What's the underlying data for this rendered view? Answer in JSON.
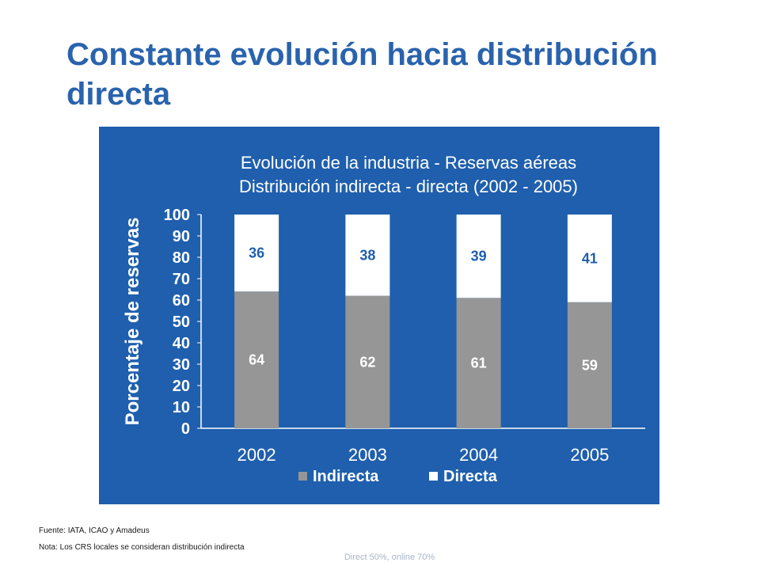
{
  "slide": {
    "title": "Constante evolución hacia distribución directa"
  },
  "chart_data": {
    "type": "bar",
    "stacked": true,
    "title": [
      "Evolución de la industria - Reservas aéreas",
      "Distribución indirecta - directa (2002 - 2005)"
    ],
    "xlabel": "",
    "ylabel": "Porcentaje de reservas",
    "categories": [
      "2002",
      "2003",
      "2004",
      "2005"
    ],
    "ylim": [
      0,
      100
    ],
    "yticks": [
      0,
      10,
      20,
      30,
      40,
      50,
      60,
      70,
      80,
      90,
      100
    ],
    "series": [
      {
        "name": "Indirecta",
        "values": [
          64,
          62,
          61,
          59
        ],
        "color": "#969696",
        "label_color": "#ffffff"
      },
      {
        "name": "Directa",
        "values": [
          36,
          38,
          39,
          41
        ],
        "color": "#ffffff",
        "label_color": "#1f5fad"
      }
    ],
    "grid": false,
    "legend": "bottom",
    "background": "#1f5fad"
  },
  "footnotes": {
    "source": "Fuente: IATA, ICAO y Amadeus",
    "note": "Nota: Los CRS locales se consideran distribución indirecta"
  },
  "caption": "Direct 50%, online 70%"
}
